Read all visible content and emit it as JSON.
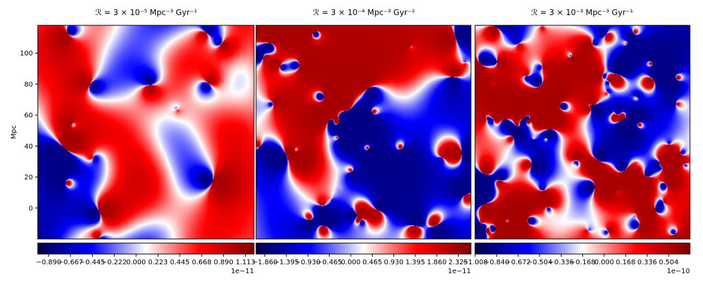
{
  "chart_data": [
    {
      "type": "heatmap",
      "title": "ℛ = 3 × 10⁻⁵ Mpc⁻³ Gyr⁻¹",
      "xlabel": "",
      "ylabel": "Mpc",
      "ylim": [
        -20,
        118
      ],
      "yticks": [
        "0",
        "20",
        "40",
        "60",
        "80",
        "100"
      ],
      "yticks_values": [
        0,
        20,
        40,
        60,
        80,
        100
      ],
      "colormap": "seismic",
      "colorbar": {
        "range": [
          -1.0,
          1.2
        ],
        "ticks": [
          -0.89,
          -0.667,
          -0.445,
          -0.222,
          0.0,
          0.223,
          0.445,
          0.668,
          0.89,
          1.113
        ],
        "tick_labels": [
          "−0.890",
          "−0.667",
          "−0.445",
          "−0.222",
          "0.000",
          "0.223",
          "0.445",
          "0.668",
          "0.890",
          "1.113"
        ],
        "offset_label": "1e−11"
      },
      "field": {
        "seed": 11,
        "scale": 1.0,
        "features": 14
      }
    },
    {
      "type": "heatmap",
      "title": "ℛ = 3 × 10⁻⁴ Mpc⁻³ Gyr⁻¹",
      "xlabel": "",
      "ylabel": "",
      "ylim": [
        -20,
        118
      ],
      "colormap": "seismic",
      "colorbar": {
        "range": [
          -2.05,
          2.6
        ],
        "ticks": [
          -1.86,
          -1.395,
          -0.93,
          -0.465,
          0.0,
          0.465,
          0.93,
          1.395,
          1.86,
          2.325
        ],
        "tick_labels": [
          "−1.860",
          "−1.395",
          "−0.930",
          "−0.465",
          "0.000",
          "0.465",
          "0.930",
          "1.395",
          "1.860",
          "2.325"
        ],
        "offset_label": "1e−11"
      },
      "field": {
        "seed": 29,
        "scale": 1.8,
        "features": 40
      }
    },
    {
      "type": "heatmap",
      "title": "ℛ = 3 × 10⁻³ Mpc⁻³ Gyr⁻¹",
      "xlabel": "",
      "ylabel": "",
      "ylim": [
        -20,
        118
      ],
      "colormap": "seismic",
      "colorbar": {
        "range": [
          -1.008,
          0.67
        ],
        "ticks": [
          -1.008,
          -0.84,
          -0.672,
          -0.504,
          -0.336,
          -0.168,
          0.0,
          0.168,
          0.336,
          0.504
        ],
        "tick_labels": [
          "−1.008",
          "−0.840",
          "−0.672",
          "−0.504",
          "−0.336",
          "−0.168",
          "0.000",
          "0.168",
          "0.336",
          "0.504"
        ],
        "offset_label": "1e−10"
      },
      "field": {
        "seed": 57,
        "scale": 3.2,
        "features": 90
      }
    }
  ]
}
